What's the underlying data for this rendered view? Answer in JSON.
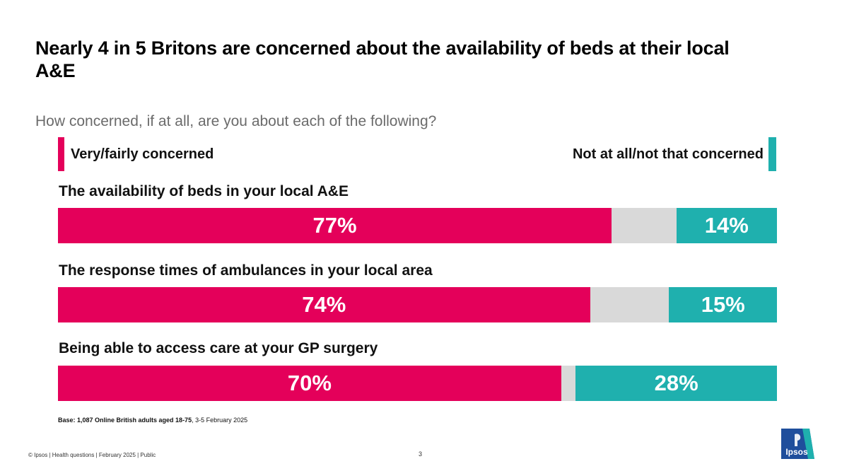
{
  "title": "Nearly 4 in 5 Britons are concerned about the availability of beds at their local A&E",
  "subtitle": "How concerned, if at all, are you about each of the following?",
  "legend": {
    "left": "Very/fairly concerned",
    "right": "Not at all/not that concerned"
  },
  "colors": {
    "concerned": "#e4005a",
    "not_concerned": "#1fb0ae",
    "other": "#d9d9d9"
  },
  "chart_data": {
    "type": "bar",
    "stacked": true,
    "orientation": "horizontal",
    "categories": [
      "The availability of beds in your local A&E",
      "The response times of ambulances in your local area",
      "Being able to access care at your GP surgery"
    ],
    "series": [
      {
        "name": "Very/fairly concerned",
        "values": [
          77,
          74,
          70
        ]
      },
      {
        "name": "Not at all/not that concerned",
        "values": [
          14,
          15,
          28
        ]
      }
    ],
    "value_labels": {
      "concerned": [
        "77%",
        "74%",
        "70%"
      ],
      "not_concerned": [
        "14%",
        "15%",
        "28%"
      ]
    },
    "xlim": [
      0,
      100
    ],
    "unit": "%"
  },
  "base_note": {
    "bold": "Base: 1,087 Online British adults aged 18-75",
    "rest": ", 3-5 February 2025"
  },
  "footer": "© Ipsos |  Health questions | February 2025 | Public",
  "page_number": "3",
  "logo_text": "Ipsos"
}
